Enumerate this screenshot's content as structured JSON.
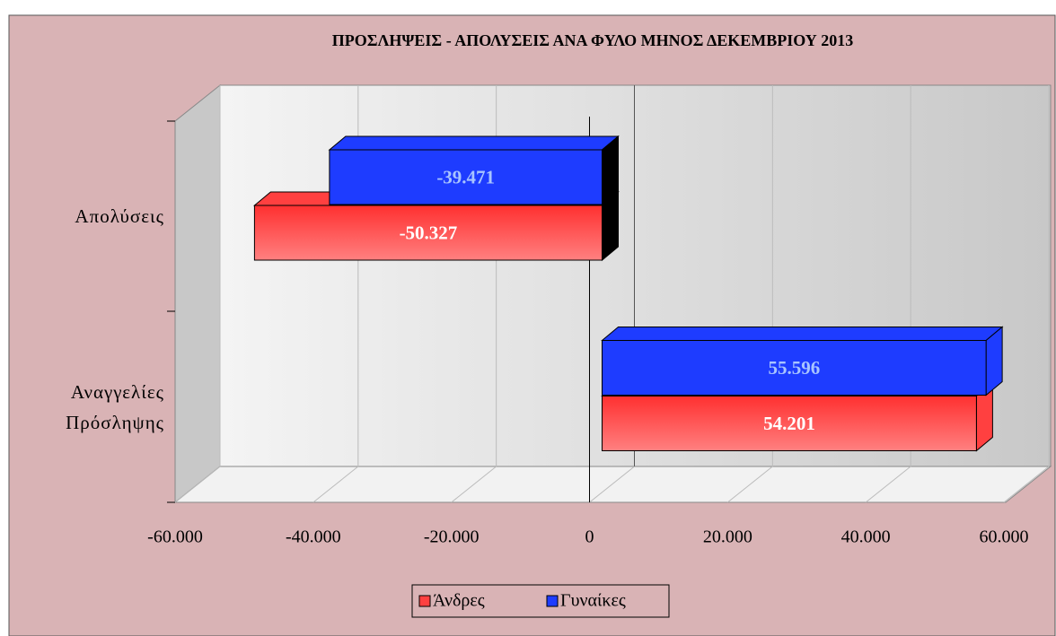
{
  "chart_data": {
    "type": "bar",
    "title": "ΠΡΟΣΛΗΨΕΙΣ - ΑΠΟΛΥΣΕΙΣ ΑΝΑ ΦΥΛΟ ΜΗΝΟΣ ΔΕΚΕΜΒΡΙΟΥ 2013",
    "categories": [
      "Απολύσεις",
      "Αναγγελίες Πρόσληψης"
    ],
    "series": [
      {
        "name": "Άνδρες",
        "color": "#ff4040",
        "values": [
          -50327,
          54201
        ],
        "value_labels": [
          "-50.327",
          "54.201"
        ]
      },
      {
        "name": "Γυναίκες",
        "color": "#1e3cff",
        "values": [
          -39471,
          55596
        ],
        "value_labels": [
          "-39.471",
          "55.596"
        ]
      }
    ],
    "xlim": [
      -60000,
      60000
    ],
    "xticks": [
      {
        "value": -60000,
        "label": "-60.000"
      },
      {
        "value": -40000,
        "label": "-40.000"
      },
      {
        "value": -20000,
        "label": "-20.000"
      },
      0,
      {
        "value": 20000,
        "label": "20.000"
      },
      {
        "value": 40000,
        "label": "40.000"
      },
      {
        "value": 60000,
        "label": "60.000"
      }
    ],
    "grid": true,
    "legend": "bottom"
  }
}
